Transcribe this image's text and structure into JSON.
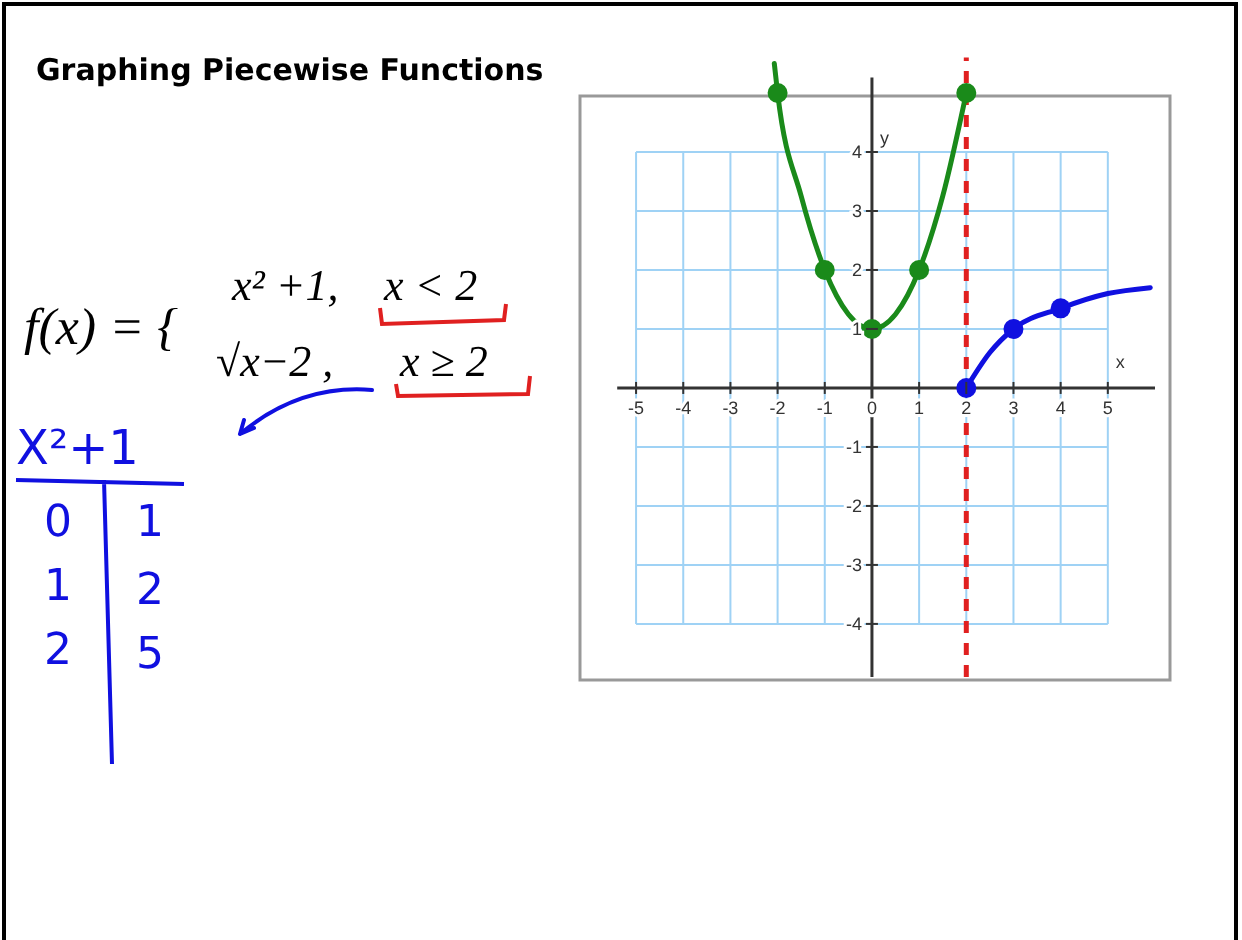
{
  "chart_data": {
    "type": "line",
    "title": "Graphing Piecewise Functions",
    "xlabel": "x",
    "ylabel": "y",
    "xlim": [
      -5.4,
      6
    ],
    "ylim": [
      -4.9,
      5.6
    ],
    "xticks": [
      -5,
      -4,
      -3,
      -2,
      -1,
      0,
      1,
      2,
      3,
      4,
      5
    ],
    "yticks": [
      -4,
      -3,
      -2,
      -1,
      1,
      2,
      3,
      4
    ],
    "grid": true,
    "series": [
      {
        "type": "line",
        "color": "#1a8a1a",
        "marker": "none",
        "x": [
          -2.07,
          -2,
          -1.5,
          -1,
          -0.5,
          0,
          0.5,
          1,
          1.5,
          2
        ],
        "values": [
          5.5,
          5,
          3.25,
          2,
          1.25,
          1,
          1.25,
          2,
          3.25,
          5
        ]
      },
      {
        "type": "scatter",
        "color": "#1a8a1a",
        "marker": "circle",
        "x": [
          -2,
          -1,
          0,
          1,
          2
        ],
        "values": [
          5,
          2,
          1,
          2,
          5
        ]
      },
      {
        "type": "line",
        "color": "#1010e0",
        "marker": "none",
        "x": [
          2,
          2.5,
          3,
          4,
          5,
          5.9
        ],
        "values": [
          0,
          0.6,
          1,
          1.35,
          1.6,
          1.7
        ]
      },
      {
        "type": "scatter",
        "color": "#1010e0",
        "marker": "circle",
        "x": [
          2,
          3,
          4
        ],
        "values": [
          0,
          1,
          1.35
        ]
      }
    ],
    "ref_lines": [
      {
        "axis": "x",
        "value": 2,
        "color": "#e02020",
        "line_style": "dashed"
      }
    ],
    "annotations": [
      "f(x) = {",
      "x² +1,",
      "x < 2",
      "√x−2 ,",
      "x ≥ 2",
      "X²+1",
      "0",
      "1",
      "1",
      "2",
      "2",
      "5"
    ]
  }
}
